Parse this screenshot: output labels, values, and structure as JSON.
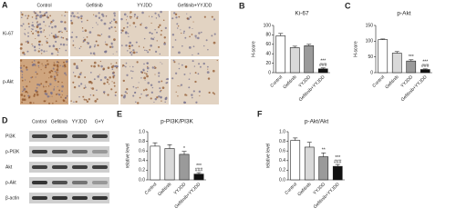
{
  "ihc_panel": {
    "panel_label": "A",
    "columns": [
      "Control",
      "Gefitinib",
      "YYJDD",
      "Gefitinib+YYJDD"
    ],
    "rows": [
      "Ki-67",
      "p-Akt"
    ]
  },
  "western_blot": {
    "panel_label": "D",
    "columns": [
      "Control",
      "Gefitinib",
      "YYJDD",
      "G+Y"
    ],
    "rows": [
      "PI3K",
      "p-PI3K",
      "Akt",
      "p-Akt",
      "β-actin"
    ]
  },
  "chart_data": [
    {
      "type": "bar",
      "panel_label": "B",
      "title": "Ki-67",
      "y_label": "H-score",
      "categories": [
        "Control",
        "Gefitinib",
        "YYJDD",
        "Gefitinib+YYJDD"
      ],
      "values": [
        78,
        53,
        57,
        8
      ],
      "errors": [
        5,
        3,
        3,
        2
      ],
      "stars": [
        null,
        null,
        null,
        "***"
      ],
      "hashes": [
        null,
        null,
        null,
        "###"
      ],
      "colors": [
        "#ffffff",
        "#d9d9d9",
        "#9a9a9a",
        "#111111"
      ],
      "ylim": [
        0,
        100
      ],
      "yticks": [
        0,
        20,
        40,
        60,
        80,
        100
      ]
    },
    {
      "type": "bar",
      "panel_label": "C",
      "title": "p-Akt",
      "y_label": "H-score",
      "categories": [
        "Control",
        "Gefitinib",
        "YYJDD",
        "Gefitinib+YYJDD"
      ],
      "values": [
        105,
        62,
        37,
        10
      ],
      "errors": [
        2,
        5,
        4,
        2
      ],
      "stars": [
        null,
        null,
        "***",
        "***"
      ],
      "hashes": [
        null,
        null,
        null,
        "###"
      ],
      "colors": [
        "#ffffff",
        "#d9d9d9",
        "#9a9a9a",
        "#111111"
      ],
      "ylim": [
        0,
        150
      ],
      "yticks": [
        0,
        50,
        100,
        150
      ]
    },
    {
      "type": "bar",
      "panel_label": "E",
      "title": "p-PI3K/PI3K",
      "y_label": "relative level",
      "categories": [
        "Control",
        "Gefitinib",
        "YYJDD",
        "Gefitinib+YYJDD"
      ],
      "values": [
        0.7,
        0.65,
        0.53,
        0.12
      ],
      "errors": [
        0.07,
        0.08,
        0.06,
        0.03
      ],
      "stars": [
        null,
        null,
        "*",
        "***"
      ],
      "hashes": [
        null,
        null,
        null,
        "###"
      ],
      "colors": [
        "#ffffff",
        "#d9d9d9",
        "#9a9a9a",
        "#111111"
      ],
      "ylim": [
        0,
        1
      ],
      "yticks": [
        {
          "value": 0,
          "label": "0.0"
        },
        0.2,
        0.4,
        0.6,
        0.8,
        {
          "value": 1,
          "label": "1.0"
        }
      ]
    },
    {
      "type": "bar",
      "panel_label": "F",
      "title": "p-Akt/Akt",
      "y_label": "relative level",
      "categories": [
        "Control",
        "Gefitinib",
        "YYJDD",
        "Gefitinib+YYJDD"
      ],
      "values": [
        0.82,
        0.68,
        0.48,
        0.28
      ],
      "errors": [
        0.05,
        0.1,
        0.08,
        0.04
      ],
      "stars": [
        null,
        null,
        "**",
        "***"
      ],
      "hashes": [
        null,
        null,
        null,
        "###"
      ],
      "colors": [
        "#ffffff",
        "#d9d9d9",
        "#9a9a9a",
        "#111111"
      ],
      "ylim": [
        0,
        1
      ],
      "yticks": [
        {
          "value": 0,
          "label": "0.0"
        },
        0.2,
        0.4,
        0.6,
        0.8,
        {
          "value": 1,
          "label": "1.0"
        }
      ]
    }
  ]
}
